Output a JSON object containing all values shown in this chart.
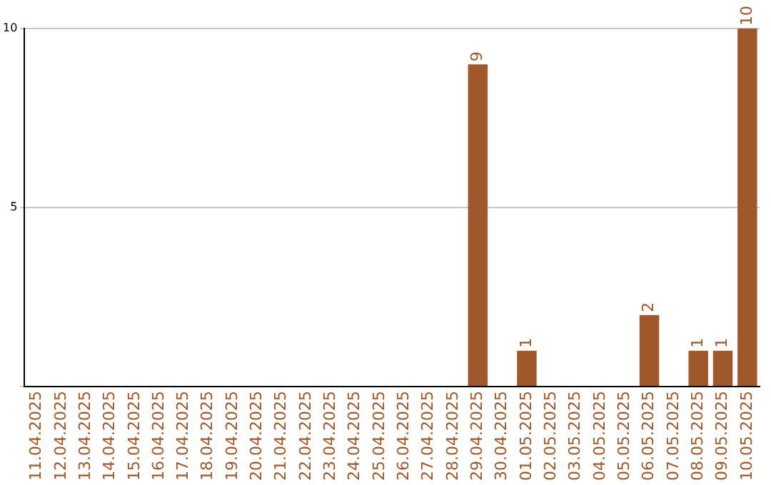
{
  "chart_data": {
    "type": "bar",
    "categories": [
      "11.04.2025",
      "12.04.2025",
      "13.04.2025",
      "14.04.2025",
      "15.04.2025",
      "16.04.2025",
      "17.04.2025",
      "18.04.2025",
      "19.04.2025",
      "20.04.2025",
      "21.04.2025",
      "22.04.2025",
      "23.04.2025",
      "24.04.2025",
      "25.04.2025",
      "26.04.2025",
      "27.04.2025",
      "28.04.2025",
      "29.04.2025",
      "30.04.2025",
      "01.05.2025",
      "02.05.2025",
      "03.05.2025",
      "04.05.2025",
      "05.05.2025",
      "06.05.2025",
      "07.05.2025",
      "08.05.2025",
      "09.05.2025",
      "10.05.2025"
    ],
    "values": [
      0,
      0,
      0,
      0,
      0,
      0,
      0,
      0,
      0,
      0,
      0,
      0,
      0,
      0,
      0,
      0,
      0,
      0,
      9,
      0,
      1,
      0,
      0,
      0,
      0,
      2,
      0,
      1,
      1,
      10
    ],
    "value_labels": [
      null,
      null,
      null,
      null,
      null,
      null,
      null,
      null,
      null,
      null,
      null,
      null,
      null,
      null,
      null,
      null,
      null,
      null,
      "9",
      null,
      "1",
      null,
      null,
      null,
      null,
      "2",
      null,
      "1",
      "1",
      "10"
    ],
    "color": "#a0582a",
    "ylim": [
      0,
      10
    ],
    "yticks": [
      {
        "value": 0,
        "label": null
      },
      5,
      10
    ],
    "grid": "y",
    "legend": false
  }
}
